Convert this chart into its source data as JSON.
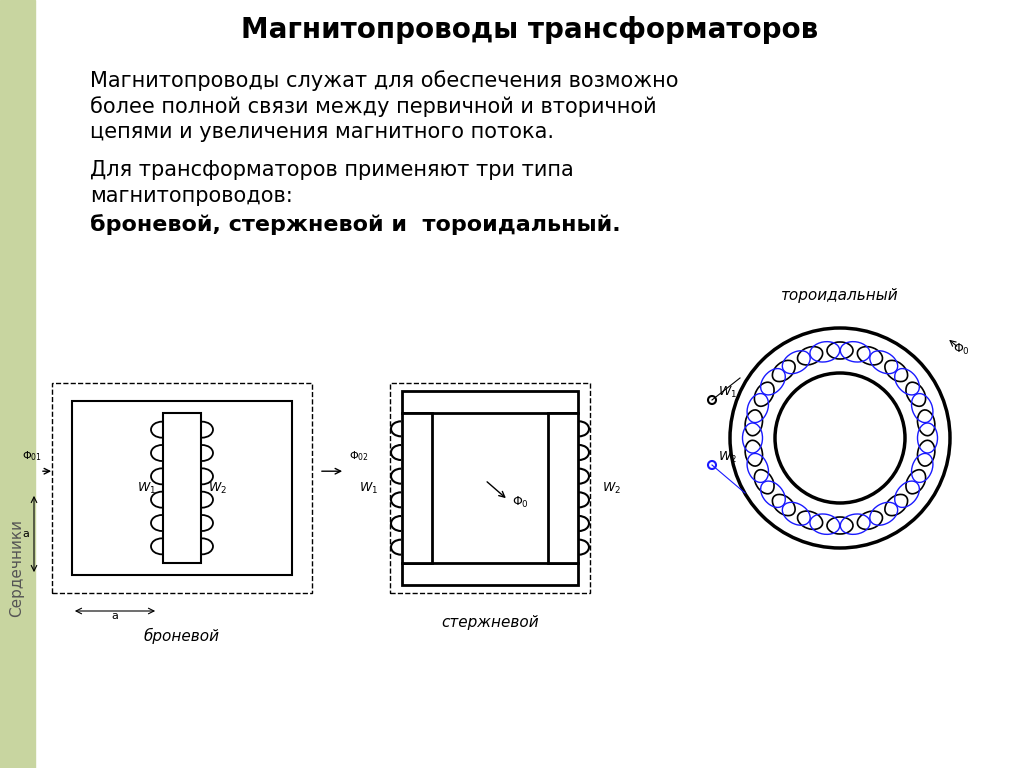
{
  "title": "Магнитопроводы трансформаторов",
  "para1_line1": "Магнитопроводы служат для обеспечения возможно",
  "para1_line2": "более полной связи между первичной и вторичной",
  "para1_line3": "цепями и увеличения магнитного потока.",
  "para2_line1": "Для трансформаторов применяют три типа",
  "para2_line2": "магнитопроводов:",
  "para3": "броневой, стержневой и  тороидальный.",
  "label1": "броневой",
  "label2": "стержневой",
  "label3": "тороидальный",
  "sidebar_text": "Сердечники",
  "sidebar_color": "#c8d5a0",
  "bg_color": "#ffffff",
  "title_fontsize": 20,
  "body_fontsize": 15,
  "bold_fontsize": 16,
  "diagram_color": "#000000",
  "blue_color": "#1a1aff"
}
